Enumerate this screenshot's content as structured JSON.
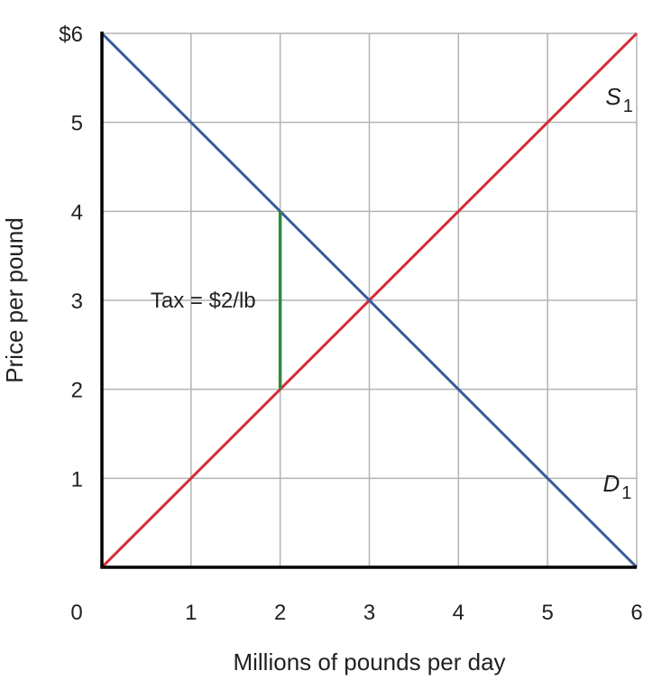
{
  "chart_data": {
    "type": "line",
    "xlabel": "Millions of pounds per day",
    "ylabel": "Price per pound",
    "xlim": [
      0,
      6
    ],
    "ylim": [
      0,
      6
    ],
    "grid": true,
    "x_ticks": [
      {
        "value": 0,
        "label": "0"
      },
      {
        "value": 1,
        "label": "1"
      },
      {
        "value": 2,
        "label": "2"
      },
      {
        "value": 3,
        "label": "3"
      },
      {
        "value": 4,
        "label": "4"
      },
      {
        "value": 5,
        "label": "5"
      },
      {
        "value": 6,
        "label": "6"
      }
    ],
    "y_ticks": [
      {
        "value": 1,
        "label": "1"
      },
      {
        "value": 2,
        "label": "2"
      },
      {
        "value": 3,
        "label": "3"
      },
      {
        "value": 4,
        "label": "4"
      },
      {
        "value": 5,
        "label": "5"
      },
      {
        "value": 6,
        "label": "$6"
      }
    ],
    "series": [
      {
        "name": "S1",
        "label_main": "S",
        "label_sub": "1",
        "color": "#d42c35",
        "points": [
          [
            0,
            0
          ],
          [
            6,
            6
          ]
        ],
        "label_at": [
          5.65,
          5.2
        ]
      },
      {
        "name": "D1",
        "label_main": "D",
        "label_sub": "1",
        "color": "#3a5a9c",
        "points": [
          [
            0,
            6
          ],
          [
            6,
            0
          ]
        ],
        "label_at": [
          5.62,
          0.85
        ]
      }
    ],
    "annotations": [
      {
        "text": "Tax = $2/lb",
        "x": 2,
        "y_from": 2,
        "y_to": 4,
        "color": "#2e8b3a",
        "label_y": 3
      }
    ]
  }
}
